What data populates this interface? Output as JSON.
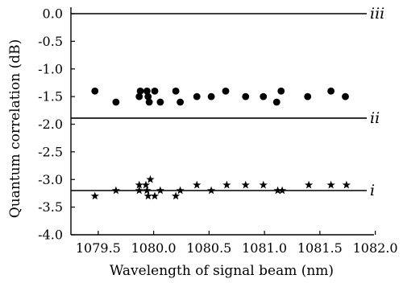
{
  "chart_data": {
    "type": "scatter",
    "xlabel": "Wavelength of signal beam (nm)",
    "ylabel": "Quantum correlation (dB)",
    "xlim": [
      1079.25,
      1082.0
    ],
    "ylim": [
      -4.0,
      0.0
    ],
    "x_ticks": [
      {
        "value": 1079.5,
        "label": "1079.5"
      },
      {
        "value": 1080.0,
        "label": "1080.0"
      },
      {
        "value": 1080.5,
        "label": "1080.5"
      },
      {
        "value": 1081.0,
        "label": "1081.0"
      },
      {
        "value": 1081.5,
        "label": "1081.5"
      },
      {
        "value": 1082.0,
        "label": "1082.0"
      }
    ],
    "y_ticks": [
      {
        "value": 0.0,
        "label": "0.0"
      },
      {
        "value": -0.5,
        "label": "-0.5"
      },
      {
        "value": -1.0,
        "label": "-1.0"
      },
      {
        "value": -1.5,
        "label": "-1.5"
      },
      {
        "value": -2.0,
        "label": "-2.0"
      },
      {
        "value": -2.5,
        "label": "-2.5"
      },
      {
        "value": -3.0,
        "label": "-3.0"
      },
      {
        "value": -3.5,
        "label": "-3.5"
      },
      {
        "value": -4.0,
        "label": "-4.0"
      }
    ],
    "reference_lines": [
      {
        "label": "iii",
        "y": 0.0
      },
      {
        "label": "ii",
        "y": -1.89
      },
      {
        "label": "i",
        "y": -3.2
      }
    ],
    "series": [
      {
        "marker": "circle",
        "points": [
          {
            "x": 1079.47,
            "y": -1.4
          },
          {
            "x": 1079.66,
            "y": -1.6
          },
          {
            "x": 1079.87,
            "y": -1.5
          },
          {
            "x": 1079.88,
            "y": -1.4
          },
          {
            "x": 1079.94,
            "y": -1.4
          },
          {
            "x": 1079.95,
            "y": -1.5
          },
          {
            "x": 1079.96,
            "y": -1.6
          },
          {
            "x": 1080.01,
            "y": -1.4
          },
          {
            "x": 1080.06,
            "y": -1.6
          },
          {
            "x": 1080.2,
            "y": -1.4
          },
          {
            "x": 1080.24,
            "y": -1.6
          },
          {
            "x": 1080.39,
            "y": -1.5
          },
          {
            "x": 1080.52,
            "y": -1.5
          },
          {
            "x": 1080.65,
            "y": -1.4
          },
          {
            "x": 1080.83,
            "y": -1.5
          },
          {
            "x": 1080.99,
            "y": -1.5
          },
          {
            "x": 1081.11,
            "y": -1.6
          },
          {
            "x": 1081.15,
            "y": -1.4
          },
          {
            "x": 1081.39,
            "y": -1.5
          },
          {
            "x": 1081.6,
            "y": -1.4
          },
          {
            "x": 1081.73,
            "y": -1.5
          }
        ]
      },
      {
        "marker": "star",
        "points": [
          {
            "x": 1079.47,
            "y": -3.3
          },
          {
            "x": 1079.66,
            "y": -3.2
          },
          {
            "x": 1079.87,
            "y": -3.2
          },
          {
            "x": 1079.87,
            "y": -3.1
          },
          {
            "x": 1079.93,
            "y": -3.1
          },
          {
            "x": 1079.94,
            "y": -3.2
          },
          {
            "x": 1079.95,
            "y": -3.3
          },
          {
            "x": 1079.97,
            "y": -3.0
          },
          {
            "x": 1080.01,
            "y": -3.3
          },
          {
            "x": 1080.06,
            "y": -3.2
          },
          {
            "x": 1080.2,
            "y": -3.3
          },
          {
            "x": 1080.24,
            "y": -3.2
          },
          {
            "x": 1080.39,
            "y": -3.1
          },
          {
            "x": 1080.52,
            "y": -3.2
          },
          {
            "x": 1080.66,
            "y": -3.1
          },
          {
            "x": 1080.83,
            "y": -3.1
          },
          {
            "x": 1080.99,
            "y": -3.1
          },
          {
            "x": 1081.12,
            "y": -3.2
          },
          {
            "x": 1081.16,
            "y": -3.2
          },
          {
            "x": 1081.4,
            "y": -3.1
          },
          {
            "x": 1081.6,
            "y": -3.1
          },
          {
            "x": 1081.74,
            "y": -3.1
          }
        ]
      }
    ]
  }
}
